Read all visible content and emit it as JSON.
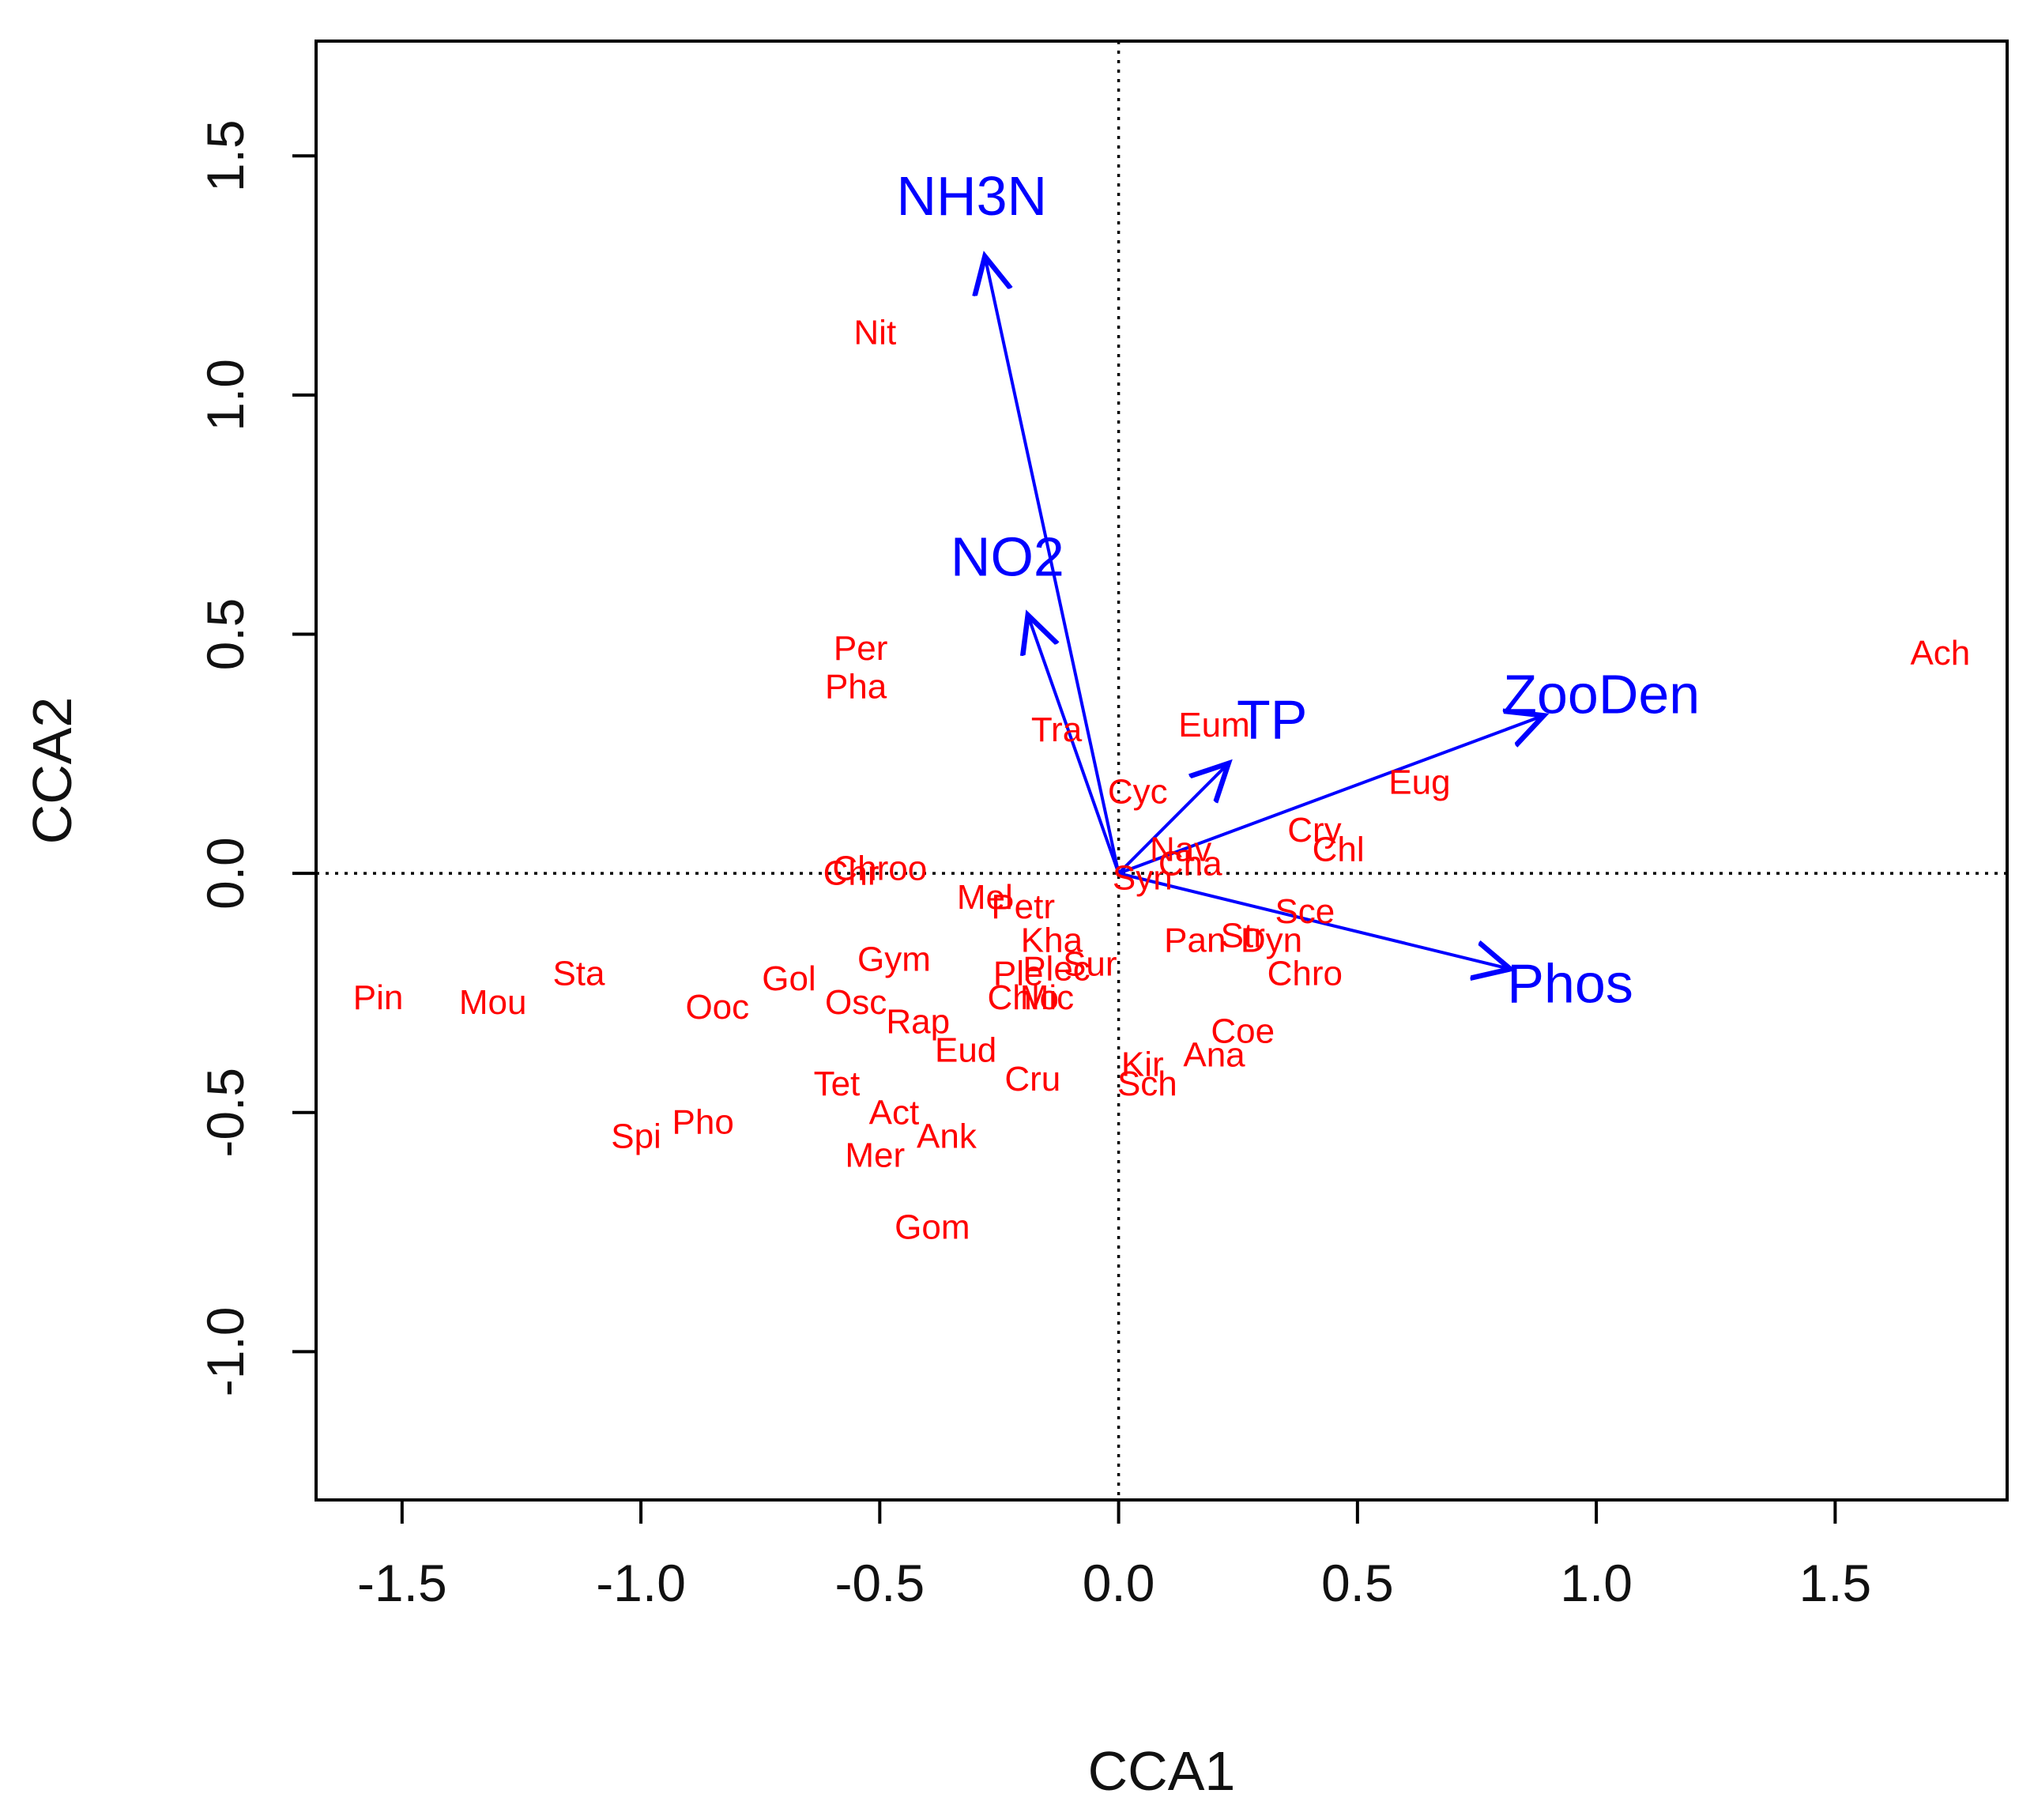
{
  "chart_data": {
    "type": "scatter",
    "subtype": "cca-biplot",
    "title": "",
    "xlabel": "CCA1",
    "ylabel": "CCA2",
    "xlim": [
      -1.68,
      1.86
    ],
    "ylim": [
      -1.31,
      1.74
    ],
    "xticks": [
      -1.5,
      -1.0,
      -0.5,
      0.0,
      0.5,
      1.0,
      1.5
    ],
    "xtick_labels": [
      "-1.5",
      "-1.0",
      "-0.5",
      "0.0",
      "0.5",
      "1.0",
      "1.5"
    ],
    "yticks": [
      -1.0,
      -0.5,
      0.0,
      0.5,
      1.0,
      1.5
    ],
    "ytick_labels": [
      "-1.0",
      "-0.5",
      "0.0",
      "0.5",
      "1.0",
      "1.5"
    ],
    "grid": false,
    "reference_lines": {
      "x": 0.0,
      "y": 0.0,
      "style": "dotted"
    },
    "species_color": "#ff0000",
    "vector_color": "#0000ff",
    "species": [
      {
        "label": "Nit",
        "x": -0.51,
        "y": 1.13
      },
      {
        "label": "Per",
        "x": -0.54,
        "y": 0.47
      },
      {
        "label": "Pha",
        "x": -0.55,
        "y": 0.39
      },
      {
        "label": "Tra",
        "x": -0.13,
        "y": 0.3
      },
      {
        "label": "Eum",
        "x": 0.2,
        "y": 0.31
      },
      {
        "label": "Ach",
        "x": 1.72,
        "y": 0.46
      },
      {
        "label": "Eug",
        "x": 0.63,
        "y": 0.19
      },
      {
        "label": "Cyc",
        "x": 0.04,
        "y": 0.17
      },
      {
        "label": "Cry",
        "x": 0.41,
        "y": 0.09
      },
      {
        "label": "Chl",
        "x": 0.46,
        "y": 0.05
      },
      {
        "label": "Nav",
        "x": 0.13,
        "y": 0.05
      },
      {
        "label": "Cha",
        "x": 0.15,
        "y": 0.02
      },
      {
        "label": "Syn",
        "x": 0.05,
        "y": -0.01
      },
      {
        "label": "Chroo",
        "x": -0.5,
        "y": 0.01
      },
      {
        "label": "Chr",
        "x": -0.56,
        "y": -0.0
      },
      {
        "label": "Mel",
        "x": -0.28,
        "y": -0.05
      },
      {
        "label": "Petr",
        "x": -0.2,
        "y": -0.07
      },
      {
        "label": "Sce",
        "x": 0.39,
        "y": -0.08
      },
      {
        "label": "Pan",
        "x": 0.16,
        "y": -0.14
      },
      {
        "label": "Str",
        "x": 0.26,
        "y": -0.13
      },
      {
        "label": "Dyn",
        "x": 0.32,
        "y": -0.14
      },
      {
        "label": "Kha",
        "x": -0.14,
        "y": -0.14
      },
      {
        "label": "Sur",
        "x": -0.06,
        "y": -0.19
      },
      {
        "label": "Plec",
        "x": -0.13,
        "y": -0.2
      },
      {
        "label": "Ple",
        "x": -0.21,
        "y": -0.21
      },
      {
        "label": "Chro",
        "x": 0.39,
        "y": -0.21
      },
      {
        "label": "Pin",
        "x": -1.55,
        "y": -0.26
      },
      {
        "label": "Mou",
        "x": -1.31,
        "y": -0.27
      },
      {
        "label": "Sta",
        "x": -1.13,
        "y": -0.21
      },
      {
        "label": "Gol",
        "x": -0.69,
        "y": -0.22
      },
      {
        "label": "Gym",
        "x": -0.47,
        "y": -0.18
      },
      {
        "label": "Ooc",
        "x": -0.84,
        "y": -0.28
      },
      {
        "label": "Osc",
        "x": -0.55,
        "y": -0.27
      },
      {
        "label": "Chlo",
        "x": -0.2,
        "y": -0.26
      },
      {
        "label": "Mic",
        "x": -0.15,
        "y": -0.26
      },
      {
        "label": "Rap",
        "x": -0.42,
        "y": -0.31
      },
      {
        "label": "Coe",
        "x": 0.26,
        "y": -0.33
      },
      {
        "label": "Eud",
        "x": -0.32,
        "y": -0.37
      },
      {
        "label": "Ana",
        "x": 0.2,
        "y": -0.38
      },
      {
        "label": "Kir",
        "x": 0.05,
        "y": -0.4
      },
      {
        "label": "Cru",
        "x": -0.18,
        "y": -0.43
      },
      {
        "label": "Sch",
        "x": 0.06,
        "y": -0.44
      },
      {
        "label": "Tet",
        "x": -0.59,
        "y": -0.44
      },
      {
        "label": "Act",
        "x": -0.47,
        "y": -0.5
      },
      {
        "label": "Pho",
        "x": -0.87,
        "y": -0.52
      },
      {
        "label": "Spi",
        "x": -1.01,
        "y": -0.55
      },
      {
        "label": "Ank",
        "x": -0.36,
        "y": -0.55
      },
      {
        "label": "Mer",
        "x": -0.51,
        "y": -0.59
      },
      {
        "label": "Gom",
        "x": -0.39,
        "y": -0.74
      }
    ],
    "vectors": [
      {
        "label": "NH3N",
        "x": -0.28,
        "y": 1.29
      },
      {
        "label": "NO2",
        "x": -0.19,
        "y": 0.54
      },
      {
        "label": "TP",
        "x": 0.23,
        "y": 0.23
      },
      {
        "label": "ZooDen",
        "x": 0.89,
        "y": 0.33
      },
      {
        "label": "Phos",
        "x": 0.82,
        "y": -0.2
      }
    ]
  }
}
